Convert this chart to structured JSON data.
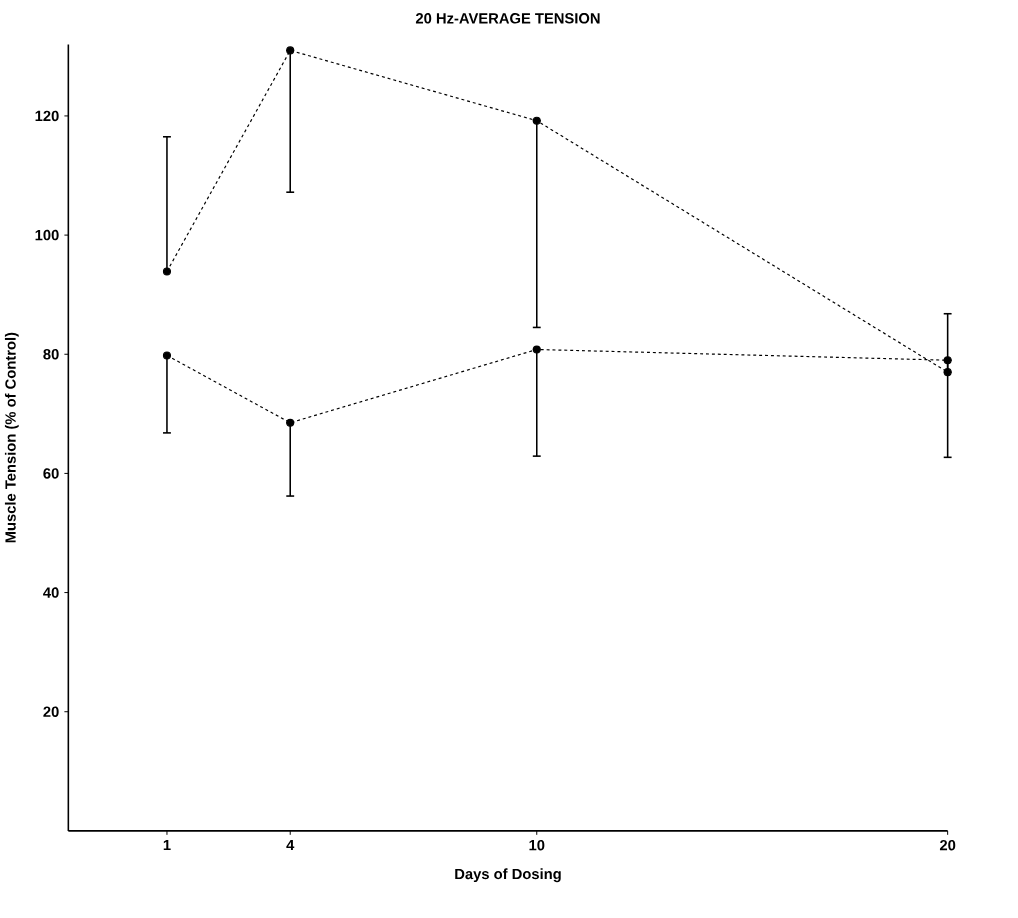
{
  "chart_data": {
    "type": "line",
    "title": "20 Hz-AVERAGE TENSION",
    "xlabel": "Days of Dosing",
    "ylabel": "Muscle Tension (% of Control)",
    "x": [
      1,
      4,
      10,
      20
    ],
    "series": [
      {
        "color": "#000000",
        "values": [
          93.9,
          131,
          119.2,
          77
        ],
        "errors": [
          [
            93.9,
            116.5
          ],
          [
            107.2,
            131
          ],
          [
            84.5,
            119.2
          ],
          [
            77,
            86.8
          ]
        ]
      },
      {
        "color": "#000000",
        "values": [
          79.8,
          68.5,
          80.8,
          79
        ],
        "errors": [
          [
            66.8,
            79.8
          ],
          [
            56.2,
            68.5
          ],
          [
            62.9,
            80.8
          ],
          [
            62.7,
            79
          ]
        ]
      }
    ],
    "xlim": [
      -1.4,
      20
    ],
    "ylim": [
      0,
      132
    ],
    "xticks": [
      1,
      4,
      10,
      20
    ],
    "yticks": [
      20,
      40,
      60,
      80,
      100,
      120
    ],
    "marker": "circle",
    "line_style": "dashed"
  }
}
